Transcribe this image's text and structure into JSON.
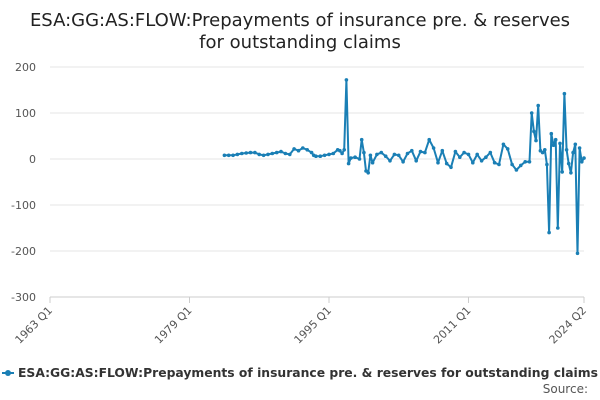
{
  "chart_data": {
    "type": "line",
    "title": "ESA:GG:AS:FLOW:Prepayments of insurance pre. & reserves for outstanding claims",
    "title_lines": [
      "ESA:GG:AS:FLOW:Prepayments of insurance pre. & reserves",
      "for outstanding claims"
    ],
    "xlabel": "",
    "ylabel": "",
    "ylim": [
      -300,
      200
    ],
    "y_ticks": [
      200,
      100,
      0,
      -100,
      -200,
      -300
    ],
    "x_range": [
      1963.0,
      2024.25
    ],
    "x_ticks": [
      {
        "label": "1963 Q1",
        "x": 1963.0
      },
      {
        "label": "1979 Q1",
        "x": 1979.0
      },
      {
        "label": "1995 Q1",
        "x": 1995.0
      },
      {
        "label": "2011 Q1",
        "x": 2011.0
      },
      {
        "label": "2024 Q2",
        "x": 2024.25
      }
    ],
    "grid": true,
    "legend_position": "bottom",
    "source_label": "Source:",
    "series": [
      {
        "name": "ESA:GG:AS:FLOW:Prepayments of insurance pre. & reserves for outstanding claims",
        "color": "#1a7fb5",
        "points": [
          [
            1983.0,
            8
          ],
          [
            1983.5,
            8
          ],
          [
            1984.0,
            8
          ],
          [
            1984.5,
            10
          ],
          [
            1985.0,
            12
          ],
          [
            1985.5,
            13
          ],
          [
            1986.0,
            14
          ],
          [
            1986.5,
            14
          ],
          [
            1987.0,
            10
          ],
          [
            1987.5,
            8
          ],
          [
            1988.0,
            10
          ],
          [
            1988.5,
            12
          ],
          [
            1989.0,
            14
          ],
          [
            1989.5,
            16
          ],
          [
            1990.0,
            12
          ],
          [
            1990.5,
            10
          ],
          [
            1991.0,
            22
          ],
          [
            1991.5,
            18
          ],
          [
            1992.0,
            24
          ],
          [
            1992.5,
            20
          ],
          [
            1993.0,
            14
          ],
          [
            1993.25,
            8
          ],
          [
            1993.5,
            6
          ],
          [
            1994.0,
            6
          ],
          [
            1994.5,
            8
          ],
          [
            1995.0,
            10
          ],
          [
            1995.5,
            12
          ],
          [
            1996.0,
            20
          ],
          [
            1996.25,
            18
          ],
          [
            1996.5,
            12
          ],
          [
            1996.75,
            20
          ],
          [
            1997.0,
            172
          ],
          [
            1997.25,
            -10
          ],
          [
            1997.5,
            2
          ],
          [
            1998.0,
            4
          ],
          [
            1998.5,
            0
          ],
          [
            1998.75,
            42
          ],
          [
            1999.0,
            14
          ],
          [
            1999.25,
            -26
          ],
          [
            1999.5,
            -30
          ],
          [
            1999.75,
            8
          ],
          [
            2000.0,
            -8
          ],
          [
            2000.5,
            10
          ],
          [
            2001.0,
            14
          ],
          [
            2001.5,
            6
          ],
          [
            2002.0,
            -4
          ],
          [
            2002.5,
            10
          ],
          [
            2003.0,
            8
          ],
          [
            2003.5,
            -6
          ],
          [
            2004.0,
            12
          ],
          [
            2004.5,
            18
          ],
          [
            2005.0,
            -4
          ],
          [
            2005.5,
            16
          ],
          [
            2006.0,
            14
          ],
          [
            2006.5,
            42
          ],
          [
            2007.0,
            24
          ],
          [
            2007.5,
            -8
          ],
          [
            2008.0,
            18
          ],
          [
            2008.5,
            -10
          ],
          [
            2009.0,
            -18
          ],
          [
            2009.5,
            16
          ],
          [
            2010.0,
            4
          ],
          [
            2010.5,
            14
          ],
          [
            2011.0,
            10
          ],
          [
            2011.5,
            -8
          ],
          [
            2012.0,
            10
          ],
          [
            2012.5,
            -4
          ],
          [
            2013.0,
            4
          ],
          [
            2013.5,
            14
          ],
          [
            2014.0,
            -8
          ],
          [
            2014.5,
            -12
          ],
          [
            2015.0,
            32
          ],
          [
            2015.5,
            22
          ],
          [
            2016.0,
            -12
          ],
          [
            2016.5,
            -24
          ],
          [
            2017.0,
            -14
          ],
          [
            2017.5,
            -6
          ],
          [
            2018.0,
            -6
          ],
          [
            2018.25,
            100
          ],
          [
            2018.5,
            60
          ],
          [
            2018.75,
            40
          ],
          [
            2019.0,
            116
          ],
          [
            2019.25,
            18
          ],
          [
            2019.5,
            14
          ],
          [
            2019.75,
            20
          ],
          [
            2020.0,
            -12
          ],
          [
            2020.25,
            -160
          ],
          [
            2020.5,
            55
          ],
          [
            2020.75,
            30
          ],
          [
            2021.0,
            42
          ],
          [
            2021.25,
            -150
          ],
          [
            2021.5,
            34
          ],
          [
            2021.75,
            -28
          ],
          [
            2022.0,
            142
          ],
          [
            2022.25,
            20
          ],
          [
            2022.5,
            -10
          ],
          [
            2022.75,
            -30
          ],
          [
            2023.0,
            14
          ],
          [
            2023.25,
            32
          ],
          [
            2023.5,
            -205
          ],
          [
            2023.75,
            24
          ],
          [
            2024.0,
            -6
          ],
          [
            2024.25,
            2
          ]
        ]
      }
    ]
  }
}
